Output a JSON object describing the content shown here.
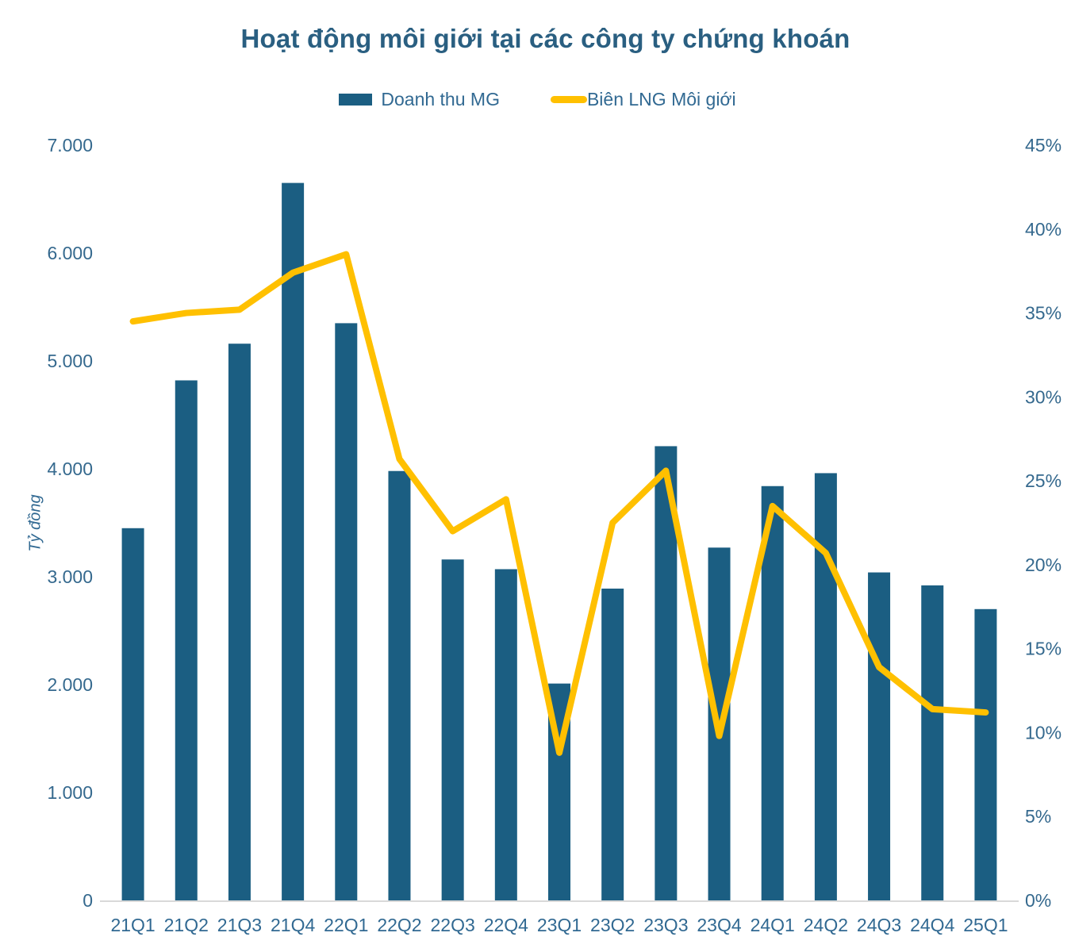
{
  "chart": {
    "title": "Hoạt động môi giới tại các công ty chứng khoán",
    "legend": [
      "Doanh thu MG",
      "Biên LNG Môi giới"
    ],
    "ylabel_left": "Tỷ đồng"
  },
  "chart_data": {
    "type": "bar",
    "subtype": "combo-bar-line",
    "title": "Hoạt động môi giới tại các công ty chứng khoán",
    "categories": [
      "21Q1",
      "21Q2",
      "21Q3",
      "21Q4",
      "22Q1",
      "22Q2",
      "22Q3",
      "22Q4",
      "23Q1",
      "23Q2",
      "23Q3",
      "23Q4",
      "24Q1",
      "24Q2",
      "24Q3",
      "24Q4",
      "25Q1"
    ],
    "series": [
      {
        "name": "Doanh thu MG",
        "type": "bar",
        "axis": "left",
        "unit": "tỷ đồng",
        "color": "#1B5E82",
        "values": [
          3450,
          4820,
          5160,
          6650,
          5350,
          3980,
          3160,
          3070,
          2010,
          2890,
          4210,
          3270,
          3840,
          3960,
          3040,
          2920,
          2700
        ]
      },
      {
        "name": "Biên LNG Môi giới",
        "type": "line",
        "axis": "right",
        "unit": "%",
        "color": "#FFC000",
        "values": [
          34.5,
          35.0,
          35.2,
          37.4,
          38.5,
          26.3,
          22.0,
          23.9,
          8.8,
          22.5,
          25.6,
          9.8,
          23.5,
          20.7,
          13.9,
          11.4,
          11.2
        ]
      }
    ],
    "left_axis": {
      "label": "Tỷ đồng",
      "min": 0,
      "max": 7000,
      "tick_step": 1000,
      "tick_labels": [
        "0",
        "1.000",
        "2.000",
        "3.000",
        "4.000",
        "5.000",
        "6.000",
        "7.000"
      ]
    },
    "right_axis": {
      "min": 0,
      "max": 45,
      "tick_step": 5,
      "tick_labels": [
        "0%",
        "5%",
        "10%",
        "15%",
        "20%",
        "25%",
        "30%",
        "35%",
        "40%",
        "45%"
      ]
    },
    "grid": false,
    "legend_position": "top"
  },
  "colors": {
    "bar": "#1B5E82",
    "line": "#FFC000",
    "title": "#2A5F81",
    "axis_text": "#35698E",
    "baseline": "#D9D9D9"
  }
}
